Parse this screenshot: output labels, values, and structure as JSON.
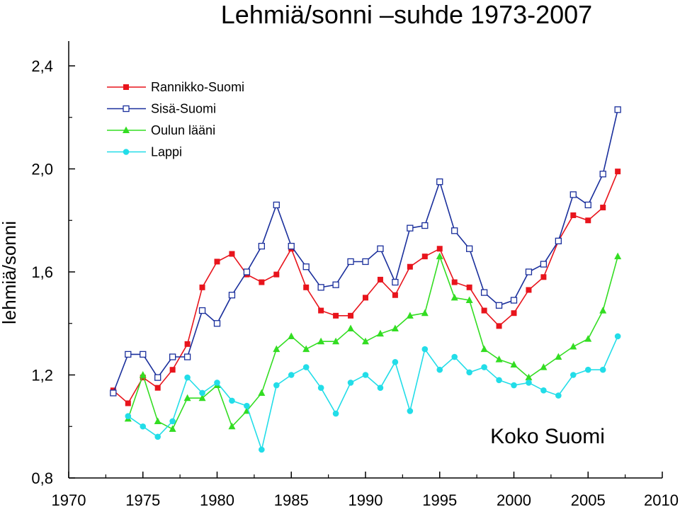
{
  "chart_data": {
    "type": "line",
    "title": "Lehmiä/sonni –suhde 1973-2007",
    "ylabel": "lehmiä/sonni",
    "xlabel": "",
    "xlim": [
      1970,
      2010
    ],
    "ylim": [
      0.8,
      2.4
    ],
    "x_ticks": [
      1970,
      1975,
      1980,
      1985,
      1990,
      1995,
      2000,
      2005,
      2010
    ],
    "y_ticks": [
      {
        "value": 0.8,
        "label": "0,8"
      },
      {
        "value": 1.2,
        "label": "1,2"
      },
      {
        "value": 1.6,
        "label": "1,6"
      },
      {
        "value": 2.0,
        "label": "2,0"
      },
      {
        "value": 2.4,
        "label": "2,4"
      }
    ],
    "annotation": "Koko Suomi",
    "legend_position": "top-left",
    "grid": false,
    "series": [
      {
        "name": "Rannikko-Suomi",
        "color": "#e8141c",
        "marker": "square-filled",
        "x": [
          1973,
          1974,
          1975,
          1976,
          1977,
          1978,
          1979,
          1980,
          1981,
          1982,
          1983,
          1984,
          1985,
          1986,
          1987,
          1988,
          1989,
          1990,
          1991,
          1992,
          1993,
          1994,
          1995,
          1996,
          1997,
          1998,
          1999,
          2000,
          2001,
          2002,
          2003,
          2004,
          2005,
          2006,
          2007
        ],
        "values": [
          1.14,
          1.09,
          1.19,
          1.15,
          1.22,
          1.32,
          1.54,
          1.64,
          1.67,
          1.59,
          1.56,
          1.59,
          1.69,
          1.54,
          1.45,
          1.43,
          1.43,
          1.5,
          1.57,
          1.51,
          1.62,
          1.66,
          1.69,
          1.56,
          1.54,
          1.45,
          1.39,
          1.44,
          1.53,
          1.58,
          1.72,
          1.82,
          1.8,
          1.85,
          1.99
        ]
      },
      {
        "name": "Sisä-Suomi",
        "color": "#1a2f9c",
        "marker": "square-open",
        "x": [
          1973,
          1974,
          1975,
          1976,
          1977,
          1978,
          1979,
          1980,
          1981,
          1982,
          1983,
          1984,
          1985,
          1986,
          1987,
          1988,
          1989,
          1990,
          1991,
          1992,
          1993,
          1994,
          1995,
          1996,
          1997,
          1998,
          1999,
          2000,
          2001,
          2002,
          2003,
          2004,
          2005,
          2006,
          2007
        ],
        "values": [
          1.13,
          1.28,
          1.28,
          1.19,
          1.27,
          1.27,
          1.45,
          1.4,
          1.51,
          1.6,
          1.7,
          1.86,
          1.7,
          1.62,
          1.54,
          1.55,
          1.64,
          1.64,
          1.69,
          1.56,
          1.77,
          1.78,
          1.95,
          1.76,
          1.69,
          1.52,
          1.47,
          1.49,
          1.6,
          1.63,
          1.72,
          1.9,
          1.86,
          1.98,
          2.23
        ]
      },
      {
        "name": "Oulun lääni",
        "color": "#33dd22",
        "marker": "triangle",
        "x": [
          1974,
          1975,
          1976,
          1977,
          1978,
          1979,
          1980,
          1981,
          1982,
          1983,
          1984,
          1985,
          1986,
          1987,
          1988,
          1989,
          1990,
          1991,
          1992,
          1993,
          1994,
          1995,
          1996,
          1997,
          1998,
          1999,
          2000,
          2001,
          2002,
          2003,
          2004,
          2005,
          2006,
          2007
        ],
        "values": [
          1.03,
          1.2,
          1.02,
          0.99,
          1.11,
          1.11,
          1.16,
          1.0,
          1.06,
          1.13,
          1.3,
          1.35,
          1.3,
          1.33,
          1.33,
          1.38,
          1.33,
          1.36,
          1.38,
          1.43,
          1.44,
          1.66,
          1.5,
          1.49,
          1.3,
          1.26,
          1.24,
          1.19,
          1.23,
          1.27,
          1.31,
          1.34,
          1.45,
          1.66
        ]
      },
      {
        "name": "Lappi",
        "color": "#22dde8",
        "marker": "circle",
        "x": [
          1974,
          1975,
          1976,
          1977,
          1978,
          1979,
          1980,
          1981,
          1982,
          1983,
          1984,
          1985,
          1986,
          1987,
          1988,
          1989,
          1990,
          1991,
          1992,
          1993,
          1994,
          1995,
          1996,
          1997,
          1998,
          1999,
          2000,
          2001,
          2002,
          2003,
          2004,
          2005,
          2006,
          2007
        ],
        "values": [
          1.04,
          1.0,
          0.96,
          1.02,
          1.19,
          1.13,
          1.17,
          1.1,
          1.08,
          0.91,
          1.16,
          1.2,
          1.23,
          1.15,
          1.05,
          1.17,
          1.2,
          1.15,
          1.25,
          1.06,
          1.3,
          1.22,
          1.27,
          1.21,
          1.23,
          1.18,
          1.16,
          1.17,
          1.14,
          1.12,
          1.2,
          1.22,
          1.22,
          1.35
        ]
      }
    ]
  }
}
